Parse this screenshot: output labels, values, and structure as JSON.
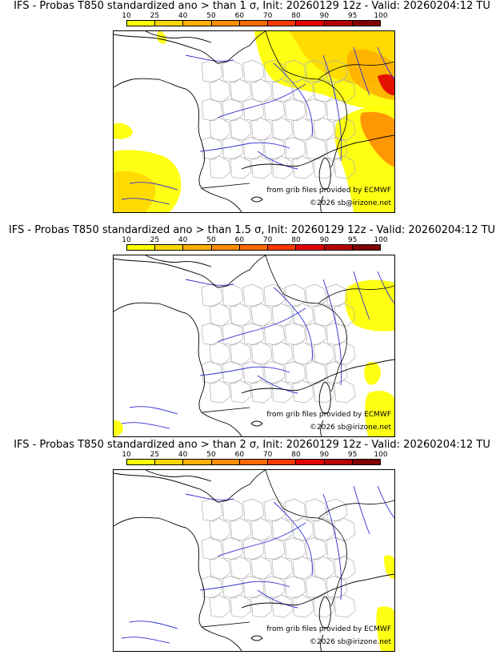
{
  "legend": {
    "labels": [
      "10",
      "25",
      "40",
      "50",
      "60",
      "70",
      "80",
      "90",
      "95",
      "100"
    ],
    "colors": [
      "#ffff00",
      "#ffd700",
      "#ffb000",
      "#ff8c00",
      "#ff6a00",
      "#ff3a00",
      "#e00000",
      "#b40000",
      "#800000"
    ]
  },
  "panels": [
    {
      "title": "IFS - Probas T850  standardized ano > than 1 σ, Init: 20260129 12z - Valid: 20260204:12 TU"
    },
    {
      "title": "IFS - Probas T850  standardized ano > than 1.5 σ, Init: 20260129 12z - Valid: 20260204:12 TU"
    },
    {
      "title": "IFS - Probas T850  standardized ano > than 2 σ, Init: 20260129 12z - Valid: 20260204:12 TU"
    }
  ],
  "credits": {
    "source": "from grib files provided by ECMWF",
    "copyright": "©2026 sb@irizone.net"
  },
  "colors": {
    "coast": "#000000",
    "borders": "#b0b0b0",
    "rivers": "#3030d0"
  }
}
